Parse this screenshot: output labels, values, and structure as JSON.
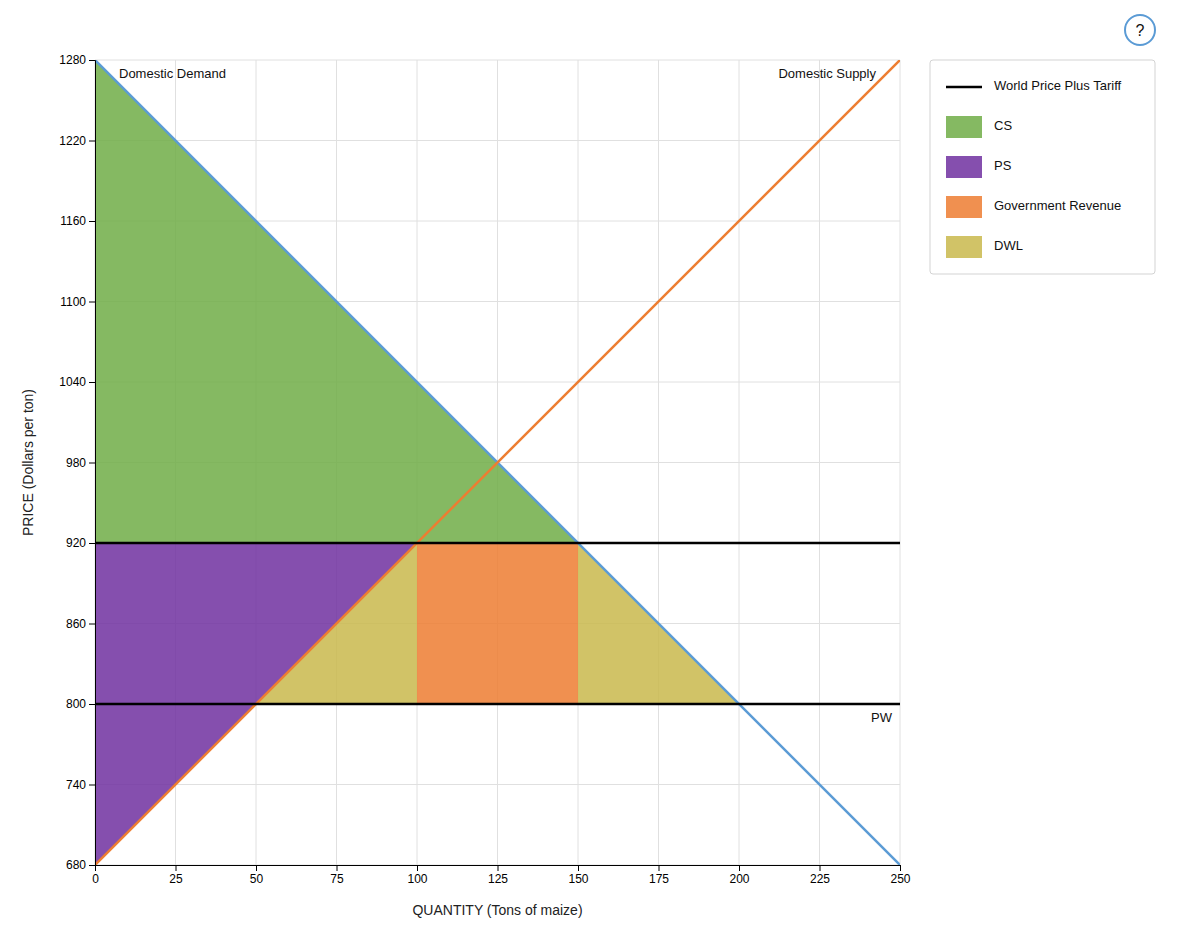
{
  "chart_data": {
    "type": "line",
    "xlabel": "QUANTITY (Tons of maize)",
    "ylabel": "PRICE (Dollars per ton)",
    "xlim": [
      0,
      250
    ],
    "ylim": [
      680,
      1280
    ],
    "xticks": [
      0,
      25,
      50,
      75,
      100,
      125,
      150,
      175,
      200,
      225,
      250
    ],
    "yticks": [
      680,
      740,
      800,
      860,
      920,
      980,
      1040,
      1100,
      1160,
      1220,
      1280
    ],
    "grid": true,
    "legend": "upper right",
    "series": [
      {
        "label": "Domestic Demand",
        "color": "#5B9BD5",
        "x": [
          0,
          250
        ],
        "values": [
          1280,
          680
        ]
      },
      {
        "label": "Domestic Supply",
        "color": "#ED7D31",
        "x": [
          0,
          250
        ],
        "values": [
          680,
          1280
        ]
      },
      {
        "label": "PW",
        "color": "black",
        "x": [
          0,
          250
        ],
        "values": [
          800,
          800
        ]
      },
      {
        "name": "World Price Plus Tariff",
        "color": "black",
        "x": [
          0,
          250
        ],
        "values": [
          920,
          920
        ]
      }
    ],
    "areas": [
      {
        "name": "CS",
        "color": "#70AD47",
        "x": [
          0,
          0,
          150
        ],
        "values": [
          1280,
          920,
          920
        ]
      },
      {
        "name": "PS",
        "color": "#7030A0",
        "x": [
          0,
          0,
          100
        ],
        "values": [
          680,
          920,
          920
        ]
      },
      {
        "name": "Government Revenue",
        "color": "#ED7D31",
        "x": [
          100,
          100,
          150,
          150
        ],
        "values": [
          800,
          920,
          920,
          800
        ]
      },
      {
        "name": "DWL",
        "color": "#C9B84C",
        "x": [
          50,
          100,
          100,
          null,
          150,
          150,
          200
        ],
        "values": [
          800,
          800,
          920,
          null,
          920,
          800,
          800
        ]
      }
    ],
    "annotations": [
      {
        "text": "?"
      }
    ]
  }
}
